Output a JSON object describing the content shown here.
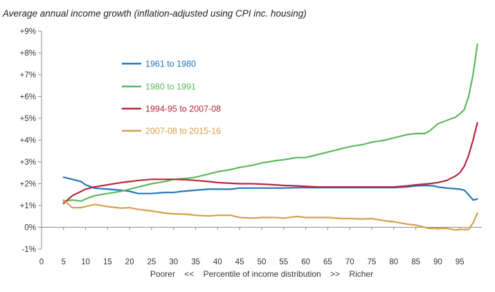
{
  "chart_data": {
    "type": "line",
    "title": "Average annual income growth (inflation-adjusted using CPI inc. housing)",
    "xlabel": "Poorer    <<    Percentile of income distribution    >>    Richer",
    "ylabel": "",
    "xlim": [
      0,
      100
    ],
    "ylim": [
      -1,
      9
    ],
    "x_ticks": [
      "0",
      "5",
      "10",
      "15",
      "20",
      "25",
      "30",
      "35",
      "40",
      "45",
      "50",
      "55",
      "60",
      "65",
      "70",
      "75",
      "80",
      "85",
      "90",
      "95"
    ],
    "y_ticks": [
      "-1%",
      "0%",
      "+1%",
      "+2%",
      "+3%",
      "+4%",
      "+5%",
      "+6%",
      "+7%",
      "+8%",
      "+9%"
    ],
    "legend_position": "left",
    "grid": false,
    "series": [
      {
        "name": "1961 to 1980",
        "color": "#2277bb",
        "x": [
          5,
          7,
          9,
          10,
          12,
          15,
          18,
          20,
          22,
          25,
          28,
          30,
          32,
          35,
          38,
          40,
          43,
          45,
          48,
          50,
          53,
          55,
          58,
          60,
          63,
          65,
          68,
          70,
          73,
          75,
          78,
          80,
          83,
          85,
          87,
          89,
          90,
          92,
          95,
          96,
          97,
          98,
          99
        ],
        "values": [
          2.3,
          2.2,
          2.1,
          1.95,
          1.8,
          1.75,
          1.7,
          1.65,
          1.55,
          1.55,
          1.6,
          1.6,
          1.65,
          1.7,
          1.75,
          1.75,
          1.75,
          1.8,
          1.8,
          1.8,
          1.8,
          1.8,
          1.82,
          1.82,
          1.82,
          1.82,
          1.82,
          1.82,
          1.82,
          1.82,
          1.82,
          1.82,
          1.85,
          1.9,
          1.92,
          1.9,
          1.85,
          1.8,
          1.75,
          1.7,
          1.5,
          1.25,
          1.3
        ]
      },
      {
        "name": "1980 to 1991",
        "color": "#5cb85c",
        "x": [
          5,
          7,
          9,
          10,
          12,
          15,
          18,
          20,
          22,
          25,
          28,
          30,
          33,
          35,
          38,
          40,
          43,
          45,
          48,
          50,
          53,
          55,
          58,
          60,
          63,
          65,
          68,
          70,
          73,
          75,
          78,
          80,
          83,
          85,
          87,
          88,
          90,
          92,
          94,
          95,
          96,
          97,
          98,
          99
        ],
        "values": [
          1.2,
          1.25,
          1.2,
          1.3,
          1.45,
          1.55,
          1.65,
          1.75,
          1.85,
          2.0,
          2.1,
          2.2,
          2.25,
          2.3,
          2.45,
          2.55,
          2.65,
          2.75,
          2.85,
          2.95,
          3.05,
          3.1,
          3.2,
          3.2,
          3.35,
          3.45,
          3.6,
          3.7,
          3.8,
          3.9,
          4.0,
          4.1,
          4.25,
          4.3,
          4.3,
          4.4,
          4.75,
          4.9,
          5.05,
          5.2,
          5.4,
          6.0,
          7.0,
          8.4
        ]
      },
      {
        "name": "1994-95 to 2007-08",
        "color": "#b5283c",
        "x": [
          5,
          7,
          9,
          10,
          12,
          15,
          18,
          20,
          22,
          25,
          28,
          30,
          33,
          35,
          38,
          40,
          43,
          45,
          48,
          50,
          53,
          55,
          58,
          60,
          63,
          65,
          68,
          70,
          73,
          75,
          78,
          80,
          83,
          85,
          88,
          90,
          92,
          94,
          95,
          96,
          97,
          98,
          99
        ],
        "values": [
          1.1,
          1.45,
          1.65,
          1.75,
          1.85,
          1.95,
          2.05,
          2.1,
          2.15,
          2.2,
          2.2,
          2.2,
          2.18,
          2.15,
          2.1,
          2.05,
          2.02,
          2.0,
          2.0,
          1.98,
          1.95,
          1.92,
          1.9,
          1.88,
          1.85,
          1.85,
          1.85,
          1.85,
          1.85,
          1.85,
          1.85,
          1.85,
          1.9,
          1.95,
          2.0,
          2.05,
          2.15,
          2.35,
          2.5,
          2.8,
          3.3,
          4.0,
          4.8
        ]
      },
      {
        "name": "2007-08 to 2015-16",
        "color": "#d4a04a",
        "x": [
          5,
          7,
          9,
          10,
          12,
          15,
          18,
          20,
          22,
          25,
          28,
          30,
          33,
          35,
          38,
          40,
          43,
          45,
          48,
          50,
          53,
          55,
          58,
          60,
          63,
          65,
          68,
          70,
          73,
          75,
          78,
          80,
          83,
          85,
          87,
          88,
          90,
          92,
          94,
          95,
          96,
          97,
          98,
          99
        ],
        "values": [
          1.25,
          0.9,
          0.9,
          0.95,
          1.05,
          0.95,
          0.88,
          0.9,
          0.82,
          0.75,
          0.65,
          0.62,
          0.6,
          0.55,
          0.52,
          0.55,
          0.55,
          0.45,
          0.42,
          0.45,
          0.45,
          0.42,
          0.5,
          0.45,
          0.45,
          0.45,
          0.4,
          0.4,
          0.38,
          0.4,
          0.3,
          0.25,
          0.15,
          0.1,
          0.0,
          -0.05,
          -0.05,
          -0.05,
          -0.12,
          -0.1,
          -0.1,
          -0.1,
          0.2,
          0.65
        ]
      }
    ]
  }
}
